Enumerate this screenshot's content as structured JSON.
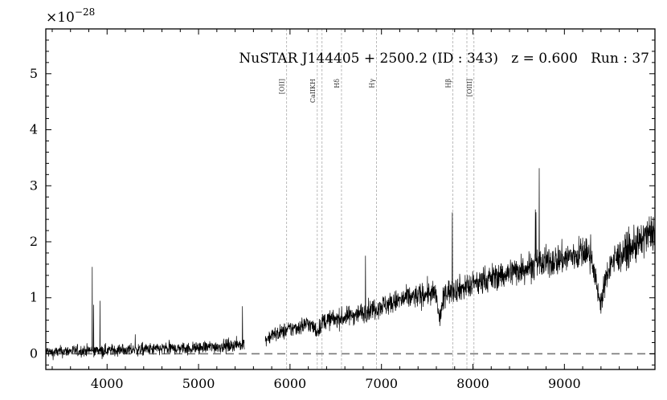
{
  "chart_data": {
    "type": "line",
    "title": "NuSTAR J144405 + 2500.2 (ID : 343)   z = 0.600   Run : 37",
    "xlabel": "",
    "ylabel": "",
    "y_multiplier": "×10",
    "y_multiplier_exponent": "−28",
    "xlim": [
      3330,
      9990
    ],
    "ylim": [
      -0.28,
      5.8
    ],
    "x_ticks": [
      4000,
      5000,
      6000,
      7000,
      8000,
      9000
    ],
    "y_ticks": [
      0,
      1,
      2,
      3,
      4,
      5
    ],
    "grid": false,
    "zero_line": {
      "y": 0,
      "style": "dashed",
      "color": "#777777"
    },
    "line_color": "#000000",
    "emission_lines": [
      {
        "name": "[OII]",
        "x": 5963
      },
      {
        "name": "CaIIKH",
        "x": 6298
      },
      {
        "name": "",
        "x": 6350
      },
      {
        "name": "Hδ",
        "x": 6563
      },
      {
        "name": "Hγ",
        "x": 6946
      },
      {
        "name": "Hβ",
        "x": 7779
      },
      {
        "name": "",
        "x": 7934
      },
      {
        "name": "[OIII]",
        "x": 8011
      }
    ],
    "series": [
      {
        "segments": [
          {
            "x": [
              3330,
              3400,
              3500,
              3600,
              3700,
              3800,
              3900,
              4000,
              4100,
              4200,
              4300,
              4400,
              4500,
              4600,
              4700,
              4800,
              4900,
              5000,
              5100,
              5200,
              5300,
              5400,
              5500
            ],
            "y": [
              0.05,
              0.02,
              0.04,
              0.05,
              0.05,
              0.06,
              0.06,
              0.06,
              0.07,
              0.07,
              0.07,
              0.08,
              0.08,
              0.09,
              0.09,
              0.1,
              0.1,
              0.11,
              0.12,
              0.13,
              0.14,
              0.16,
              0.18
            ]
          },
          {
            "x": [
              5730,
              5800,
              5900,
              6000,
              6100,
              6200,
              6300,
              6350,
              6400,
              6500,
              6600,
              6700,
              6800,
              6900,
              7000,
              7100,
              7200,
              7300,
              7400,
              7500,
              7600,
              7630,
              7700,
              7800,
              7900,
              8000,
              8100,
              8200,
              8300,
              8400,
              8500,
              8600,
              8700,
              8800,
              8900,
              9000,
              9100,
              9200,
              9300,
              9350,
              9400,
              9450,
              9500,
              9600,
              9700,
              9800,
              9900,
              9990
            ],
            "y": [
              0.25,
              0.33,
              0.38,
              0.44,
              0.48,
              0.55,
              0.4,
              0.55,
              0.6,
              0.62,
              0.65,
              0.7,
              0.74,
              0.8,
              0.86,
              0.9,
              0.95,
              1.0,
              1.03,
              1.08,
              1.05,
              0.6,
              1.1,
              1.15,
              1.18,
              1.22,
              1.3,
              1.35,
              1.4,
              1.45,
              1.5,
              1.55,
              1.6,
              1.62,
              1.67,
              1.7,
              1.75,
              1.8,
              1.78,
              1.2,
              0.9,
              1.3,
              1.6,
              1.75,
              1.85,
              1.95,
              2.1,
              2.2
            ]
          }
        ]
      }
    ]
  }
}
